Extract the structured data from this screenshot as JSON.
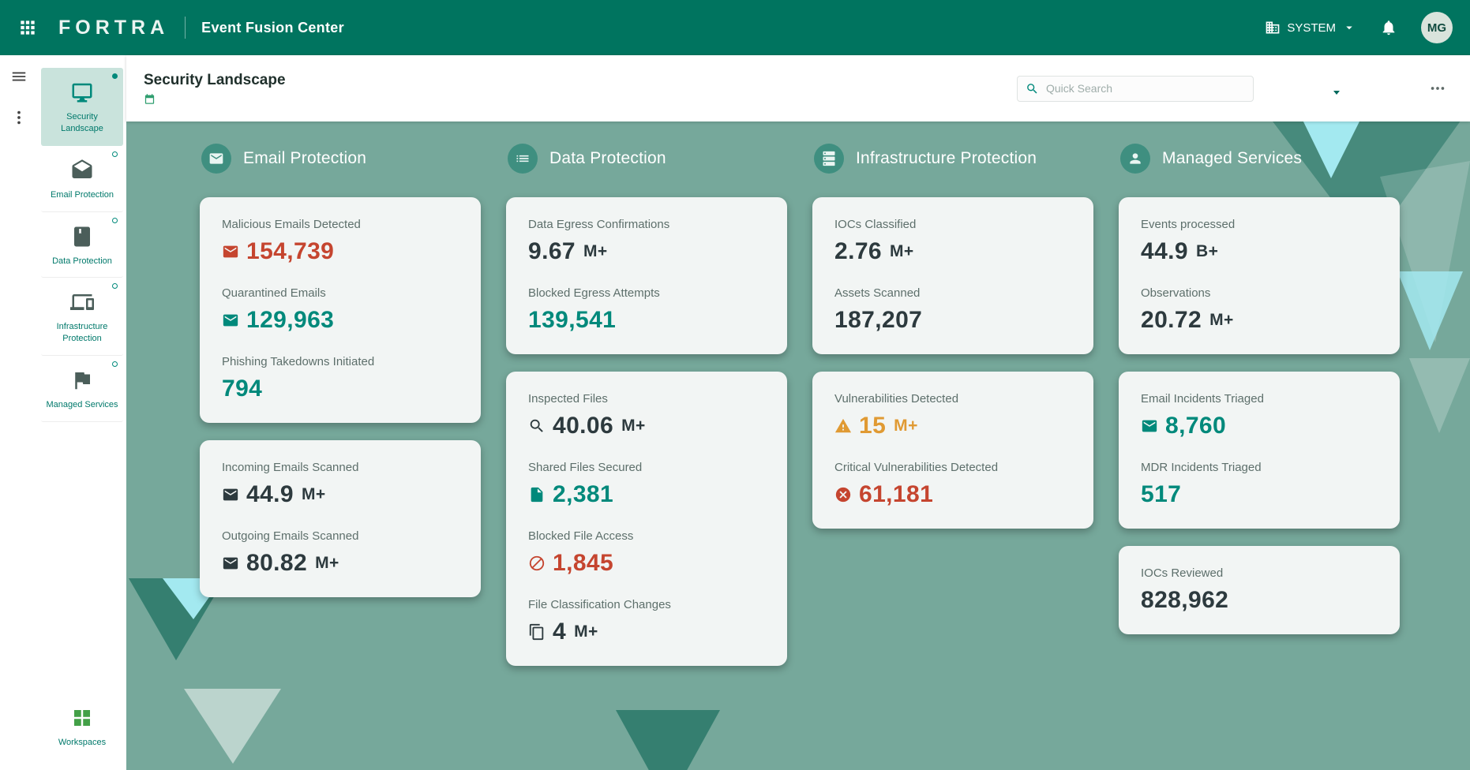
{
  "topbar": {
    "brand": "FORTRA",
    "app_title": "Event Fusion Center",
    "system_label": "SYSTEM",
    "avatar_initials": "MG"
  },
  "header": {
    "title": "Security Landscape",
    "search_placeholder": "Quick Search"
  },
  "sidebar": {
    "items": [
      {
        "label": "Security Landscape",
        "icon": "monitor",
        "selected": true
      },
      {
        "label": "Email Protection",
        "icon": "mail-open",
        "selected": false
      },
      {
        "label": "Data Protection",
        "icon": "book",
        "selected": false
      },
      {
        "label": "Infrastructure Protection",
        "icon": "devices",
        "selected": false
      },
      {
        "label": "Managed Services",
        "icon": "flags",
        "selected": false
      }
    ],
    "workspaces": {
      "label": "Workspaces",
      "icon": "workspaces"
    }
  },
  "dashboard": {
    "columns": [
      {
        "title": "Email Protection",
        "icon": "mail",
        "cards": [
          {
            "metrics": [
              {
                "label": "Malicious Emails Detected",
                "value": "154,739",
                "suffix": "",
                "color": "red",
                "icon": "mail"
              },
              {
                "label": "Quarantined Emails",
                "value": "129,963",
                "suffix": "",
                "color": "teal",
                "icon": "mail"
              },
              {
                "label": "Phishing Takedowns Initiated",
                "value": "794",
                "suffix": "",
                "color": "teal",
                "icon": ""
              }
            ]
          },
          {
            "metrics": [
              {
                "label": "Incoming Emails Scanned",
                "value": "44.9",
                "suffix": "M+",
                "color": "dark",
                "icon": "mail"
              },
              {
                "label": "Outgoing Emails Scanned",
                "value": "80.82",
                "suffix": "M+",
                "color": "dark",
                "icon": "mail"
              }
            ]
          }
        ]
      },
      {
        "title": "Data Protection",
        "icon": "list",
        "cards": [
          {
            "metrics": [
              {
                "label": "Data Egress Confirmations",
                "value": "9.67",
                "suffix": "M+",
                "color": "dark",
                "icon": ""
              },
              {
                "label": "Blocked Egress Attempts",
                "value": "139,541",
                "suffix": "",
                "color": "teal",
                "icon": ""
              }
            ]
          },
          {
            "metrics": [
              {
                "label": "Inspected Files",
                "value": "40.06",
                "suffix": "M+",
                "color": "dark",
                "icon": "search"
              },
              {
                "label": "Shared Files Secured",
                "value": "2,381",
                "suffix": "",
                "color": "teal",
                "icon": "file"
              },
              {
                "label": "Blocked File Access",
                "value": "1,845",
                "suffix": "",
                "color": "red",
                "icon": "block"
              },
              {
                "label": "File Classification Changes",
                "value": "4",
                "suffix": "M+",
                "color": "dark",
                "icon": "copy"
              }
            ]
          }
        ]
      },
      {
        "title": "Infrastructure Protection",
        "icon": "server",
        "cards": [
          {
            "metrics": [
              {
                "label": "IOCs Classified",
                "value": "2.76",
                "suffix": "M+",
                "color": "dark",
                "icon": ""
              },
              {
                "label": "Assets Scanned",
                "value": "187,207",
                "suffix": "",
                "color": "dark",
                "icon": ""
              }
            ]
          },
          {
            "metrics": [
              {
                "label": "Vulnerabilities Detected",
                "value": "15",
                "suffix": "M+",
                "color": "orange",
                "icon": "warning"
              },
              {
                "label": "Critical Vulnerabilities Detected",
                "value": "61,181",
                "suffix": "",
                "color": "red",
                "icon": "error"
              }
            ]
          }
        ]
      },
      {
        "title": "Managed Services",
        "icon": "services",
        "cards": [
          {
            "metrics": [
              {
                "label": "Events processed",
                "value": "44.9",
                "suffix": "B+",
                "color": "dark",
                "icon": ""
              },
              {
                "label": "Observations",
                "value": "20.72",
                "suffix": "M+",
                "color": "dark",
                "icon": ""
              }
            ]
          },
          {
            "metrics": [
              {
                "label": "Email Incidents Triaged",
                "value": "8,760",
                "suffix": "",
                "color": "teal",
                "icon": "mail"
              },
              {
                "label": "MDR Incidents Triaged",
                "value": "517",
                "suffix": "",
                "color": "teal",
                "icon": ""
              }
            ]
          },
          {
            "metrics": [
              {
                "label": "IOCs Reviewed",
                "value": "828,962",
                "suffix": "",
                "color": "dark",
                "icon": ""
              }
            ]
          }
        ]
      }
    ]
  },
  "colors": {
    "topbar_green": "#00745F",
    "dashboard_background": "#76A89B",
    "accent_teal": "#00897B",
    "alert_red": "#C5452F",
    "warn_orange": "#E09A33",
    "dark_value": "#2D3A3E",
    "decor_cyan": "#A3E9F0"
  }
}
